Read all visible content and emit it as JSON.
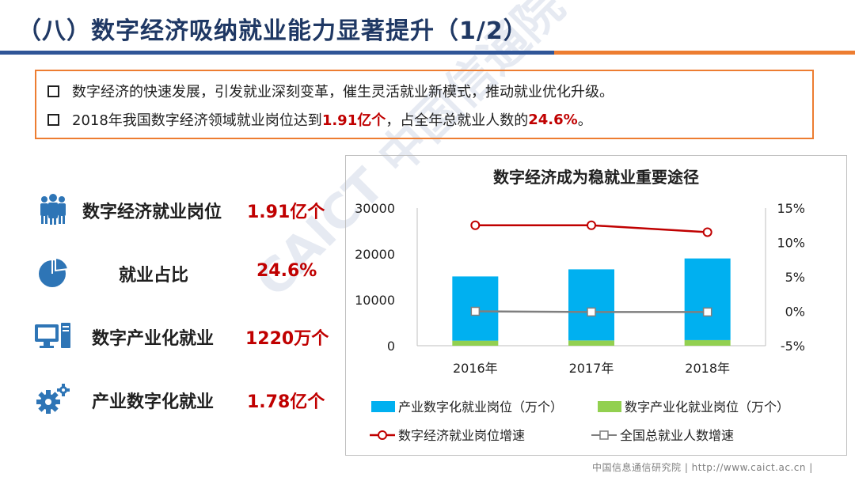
{
  "header": {
    "title": "（八）数字经济吸纳就业能力显著提升（1/2）"
  },
  "bullets": [
    {
      "text": "数字经济的快速发展，引发就业深刻变革，催生灵活就业新模式，推动就业优化升级。"
    },
    {
      "pre": "2018年我国数字经济领域就业岗位达到",
      "hl1": "1.91亿个",
      "mid": "，占全年总就业人数的",
      "hl2": "24.6%",
      "post": "。"
    }
  ],
  "metrics": [
    {
      "icon": "people-group-icon",
      "label": "数字经济就业岗位",
      "value": "1.91亿个"
    },
    {
      "icon": "pie-chart-icon",
      "label": "就业占比",
      "value": "24.6%"
    },
    {
      "icon": "computer-icon",
      "label": "数字产业化就业",
      "value": "1220万个"
    },
    {
      "icon": "gears-icon",
      "label": "产业数字化就业",
      "value": "1.78亿个"
    }
  ],
  "chart_data": {
    "type": "bar",
    "title": "数字经济成为稳就业重要途径",
    "categories": [
      "2016年",
      "2017年",
      "2018年"
    ],
    "series": [
      {
        "name": "产业数字化就业岗位（万个）",
        "type": "bar",
        "axis": "left",
        "color": "#00b0f0",
        "values": [
          14000,
          15500,
          17800
        ]
      },
      {
        "name": "数字产业化就业岗位（万个）",
        "type": "bar",
        "axis": "left",
        "color": "#92d050",
        "values": [
          1100,
          1150,
          1220
        ]
      },
      {
        "name": "数字经济就业岗位增速",
        "type": "line",
        "axis": "right",
        "color": "#c00000",
        "values": [
          12.5,
          12.5,
          11.5
        ]
      },
      {
        "name": "全国总就业人数增速",
        "type": "line",
        "axis": "right",
        "color": "#7f7f7f",
        "values": [
          0.0,
          -0.1,
          -0.1
        ]
      }
    ],
    "y_left": {
      "min": 0,
      "max": 30000,
      "ticks": [
        "0",
        "10000",
        "20000",
        "30000"
      ]
    },
    "y_right": {
      "min": -5,
      "max": 15,
      "ticks": [
        "-5%",
        "0%",
        "5%",
        "10%",
        "15%"
      ]
    },
    "grid": false,
    "legend_position": "bottom"
  },
  "footer": {
    "text": "中国信息通信研究院 | http://www.caict.ac.cn |"
  },
  "watermark": {
    "text": "CAICT 中国信通院"
  }
}
